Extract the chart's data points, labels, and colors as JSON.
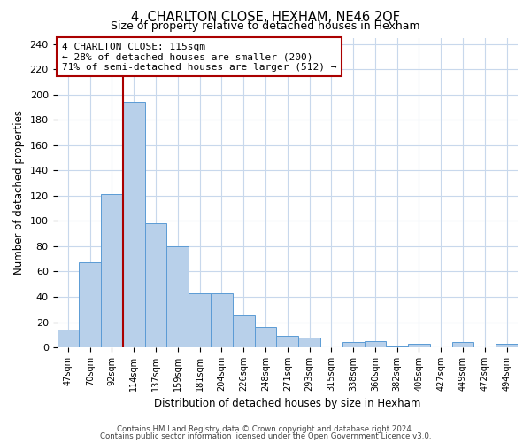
{
  "title": "4, CHARLTON CLOSE, HEXHAM, NE46 2QF",
  "subtitle": "Size of property relative to detached houses in Hexham",
  "xlabel": "Distribution of detached houses by size in Hexham",
  "ylabel": "Number of detached properties",
  "categories": [
    "47sqm",
    "70sqm",
    "92sqm",
    "114sqm",
    "137sqm",
    "159sqm",
    "181sqm",
    "204sqm",
    "226sqm",
    "248sqm",
    "271sqm",
    "293sqm",
    "315sqm",
    "338sqm",
    "360sqm",
    "382sqm",
    "405sqm",
    "427sqm",
    "449sqm",
    "472sqm",
    "494sqm"
  ],
  "values": [
    14,
    67,
    121,
    194,
    98,
    80,
    43,
    43,
    25,
    16,
    9,
    8,
    0,
    4,
    5,
    1,
    3,
    0,
    4,
    0,
    3
  ],
  "bar_color": "#b8d0ea",
  "bar_edge_color": "#5b9bd5",
  "vline_color": "#aa0000",
  "annotation_box_text": "4 CHARLTON CLOSE: 115sqm\n← 28% of detached houses are smaller (200)\n71% of semi-detached houses are larger (512) →",
  "ylim": [
    0,
    245
  ],
  "yticks": [
    0,
    20,
    40,
    60,
    80,
    100,
    120,
    140,
    160,
    180,
    200,
    220,
    240
  ],
  "footer_line1": "Contains HM Land Registry data © Crown copyright and database right 2024.",
  "footer_line2": "Contains public sector information licensed under the Open Government Licence v3.0.",
  "background_color": "#ffffff",
  "grid_color": "#c8d8ec"
}
